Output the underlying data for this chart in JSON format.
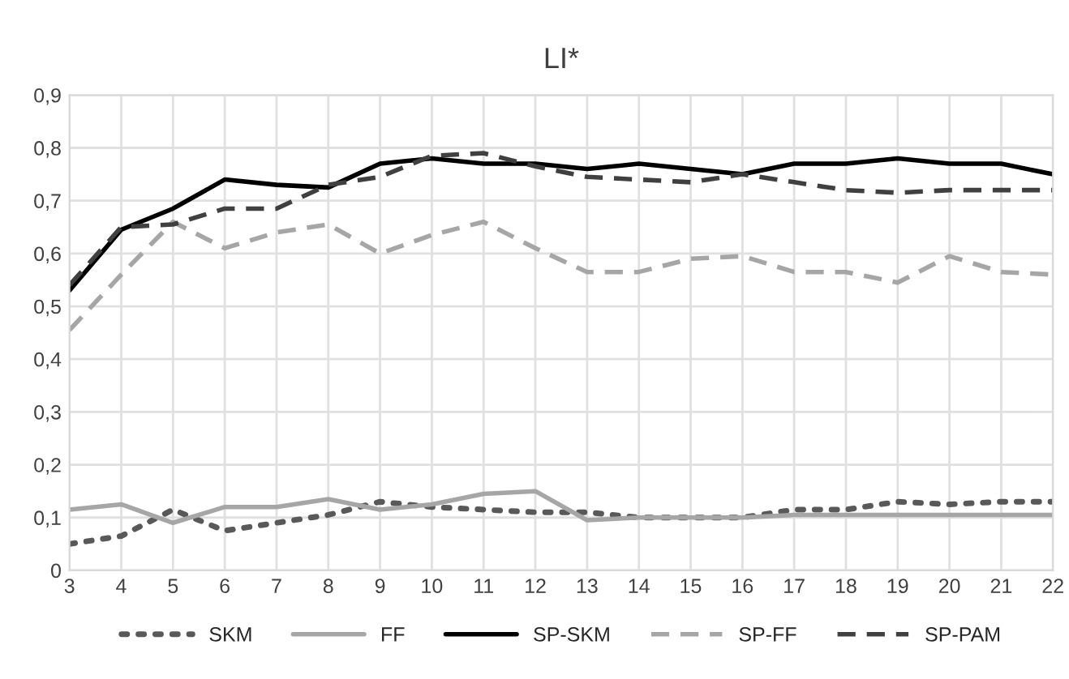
{
  "chart_data": {
    "type": "line",
    "title": "LI*",
    "categories": [
      "3",
      "4",
      "5",
      "6",
      "7",
      "8",
      "9",
      "10",
      "11",
      "12",
      "13",
      "14",
      "15",
      "16",
      "17",
      "18",
      "19",
      "20",
      "21",
      "22"
    ],
    "series": [
      {
        "name": "SKM",
        "color": "#595959",
        "line_style": "dotted",
        "values": [
          0.05,
          0.065,
          0.115,
          0.075,
          0.09,
          0.105,
          0.13,
          0.12,
          0.115,
          0.11,
          0.11,
          0.1,
          0.1,
          0.1,
          0.115,
          0.115,
          0.13,
          0.125,
          0.13,
          0.13
        ]
      },
      {
        "name": "FF",
        "color": "#a6a6a6",
        "line_style": "solid",
        "values": [
          0.115,
          0.125,
          0.09,
          0.12,
          0.12,
          0.135,
          0.115,
          0.125,
          0.145,
          0.15,
          0.095,
          0.1,
          0.1,
          0.1,
          0.105,
          0.105,
          0.105,
          0.105,
          0.105,
          0.105
        ]
      },
      {
        "name": "SP-SKM",
        "color": "#000000",
        "line_style": "solid",
        "values": [
          0.53,
          0.645,
          0.685,
          0.74,
          0.73,
          0.725,
          0.77,
          0.78,
          0.77,
          0.77,
          0.76,
          0.77,
          0.76,
          0.75,
          0.77,
          0.77,
          0.78,
          0.77,
          0.77,
          0.75
        ]
      },
      {
        "name": "SP-FF",
        "color": "#a6a6a6",
        "line_style": "dashed",
        "values": [
          0.455,
          0.56,
          0.66,
          0.61,
          0.64,
          0.655,
          0.6,
          0.635,
          0.66,
          0.61,
          0.565,
          0.565,
          0.59,
          0.595,
          0.565,
          0.565,
          0.545,
          0.595,
          0.565,
          0.56
        ]
      },
      {
        "name": "SP-PAM",
        "color": "#404040",
        "line_style": "dashed",
        "values": [
          0.54,
          0.65,
          0.655,
          0.685,
          0.685,
          0.73,
          0.745,
          0.785,
          0.79,
          0.765,
          0.745,
          0.74,
          0.735,
          0.75,
          0.735,
          0.72,
          0.715,
          0.72,
          0.72,
          0.72
        ]
      }
    ],
    "ylim": [
      0,
      0.9
    ],
    "yticks": [
      {
        "value": 0,
        "label": "0"
      },
      {
        "value": 0.1,
        "label": "0,1"
      },
      {
        "value": 0.2,
        "label": "0,2"
      },
      {
        "value": 0.3,
        "label": "0,3"
      },
      {
        "value": 0.4,
        "label": "0,4"
      },
      {
        "value": 0.5,
        "label": "0,5"
      },
      {
        "value": 0.6,
        "label": "0,6"
      },
      {
        "value": 0.7,
        "label": "0,7"
      },
      {
        "value": 0.8,
        "label": "0,8"
      },
      {
        "value": 0.9,
        "label": "0,9"
      }
    ],
    "grid": true,
    "legend": "bottom",
    "marker": "none"
  }
}
